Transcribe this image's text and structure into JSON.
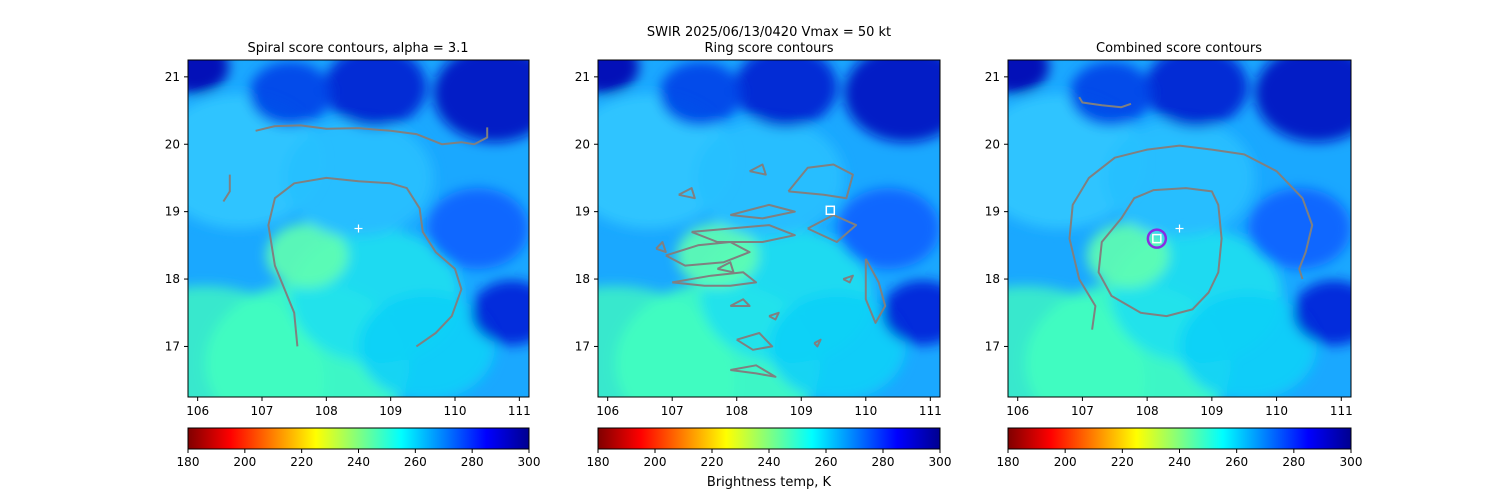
{
  "suptitle_line1": "SWIR  2025/06/13/0420    Vmax = 50 kt",
  "colorbar_label": "Brightness temp, K",
  "colormap": [
    "#800000",
    "#ff0000",
    "#ff8000",
    "#ffff00",
    "#80ff80",
    "#00ffff",
    "#0080ff",
    "#0000ff",
    "#00008f"
  ],
  "contour_color": "#808080",
  "center_cross_color": "#ffffff",
  "chart_data": [
    {
      "type": "heatmap",
      "title": "Spiral score contours, alpha =  3.1",
      "xlim": [
        105.85,
        111.15
      ],
      "ylim": [
        16.25,
        21.25
      ],
      "xticks": [
        106,
        107,
        108,
        109,
        110,
        111
      ],
      "yticks": [
        17,
        18,
        19,
        20,
        21
      ],
      "colorbar": {
        "min": 180,
        "max": 300,
        "ticks": [
          180,
          200,
          220,
          240,
          260,
          280,
          300
        ]
      },
      "center_cross": {
        "x": 108.5,
        "y": 18.75
      },
      "contours": [
        [
          [
            106.9,
            20.2
          ],
          [
            107.2,
            20.27
          ],
          [
            107.6,
            20.28
          ],
          [
            108.0,
            20.23
          ],
          [
            108.5,
            20.24
          ],
          [
            109.0,
            20.2
          ],
          [
            109.4,
            20.15
          ],
          [
            109.8,
            20.0
          ],
          [
            110.1,
            20.03
          ],
          [
            110.3,
            20.0
          ],
          [
            110.5,
            20.1
          ],
          [
            110.5,
            20.25
          ]
        ],
        [
          [
            106.4,
            19.15
          ],
          [
            106.5,
            19.3
          ],
          [
            106.5,
            19.55
          ]
        ],
        [
          [
            107.55,
            17.0
          ],
          [
            107.5,
            17.5
          ],
          [
            107.2,
            18.2
          ],
          [
            107.1,
            18.8
          ],
          [
            107.2,
            19.2
          ],
          [
            107.5,
            19.42
          ],
          [
            108.0,
            19.5
          ],
          [
            108.5,
            19.45
          ],
          [
            109.0,
            19.42
          ],
          [
            109.25,
            19.35
          ],
          [
            109.45,
            19.05
          ],
          [
            109.5,
            18.7
          ],
          [
            109.7,
            18.4
          ],
          [
            110.0,
            18.15
          ],
          [
            110.1,
            17.85
          ],
          [
            109.95,
            17.45
          ],
          [
            109.7,
            17.2
          ],
          [
            109.4,
            17.0
          ]
        ]
      ]
    },
    {
      "type": "heatmap",
      "title": "Ring score contours",
      "xlim": [
        105.85,
        111.15
      ],
      "ylim": [
        16.25,
        21.25
      ],
      "xticks": [
        106,
        107,
        108,
        109,
        110,
        111
      ],
      "yticks": [
        17,
        18,
        19,
        20,
        21
      ],
      "colorbar": {
        "min": 180,
        "max": 300,
        "ticks": [
          180,
          200,
          220,
          240,
          260,
          280,
          300
        ]
      },
      "square_marker": {
        "x": 109.45,
        "y": 19.02
      },
      "contours": [
        [
          [
            107.0,
            17.95
          ],
          [
            107.5,
            17.9
          ],
          [
            107.9,
            17.9
          ],
          [
            108.3,
            17.95
          ],
          [
            108.1,
            18.1
          ],
          [
            107.6,
            18.05
          ],
          [
            107.0,
            17.95
          ]
        ],
        [
          [
            106.9,
            18.35
          ],
          [
            107.4,
            18.5
          ],
          [
            107.9,
            18.55
          ],
          [
            108.2,
            18.4
          ],
          [
            107.8,
            18.25
          ],
          [
            107.2,
            18.2
          ],
          [
            106.9,
            18.35
          ]
        ],
        [
          [
            107.3,
            18.7
          ],
          [
            107.9,
            18.75
          ],
          [
            108.5,
            18.8
          ],
          [
            108.9,
            18.65
          ],
          [
            108.4,
            18.55
          ],
          [
            107.7,
            18.55
          ],
          [
            107.3,
            18.7
          ]
        ],
        [
          [
            107.9,
            18.95
          ],
          [
            108.5,
            19.1
          ],
          [
            108.9,
            19.0
          ],
          [
            108.4,
            18.9
          ],
          [
            107.9,
            18.95
          ]
        ],
        [
          [
            108.8,
            19.3
          ],
          [
            109.1,
            19.65
          ],
          [
            109.5,
            19.7
          ],
          [
            109.8,
            19.55
          ],
          [
            109.7,
            19.2
          ],
          [
            109.35,
            19.25
          ],
          [
            108.8,
            19.3
          ]
        ],
        [
          [
            109.1,
            18.75
          ],
          [
            109.5,
            18.95
          ],
          [
            109.85,
            18.8
          ],
          [
            109.55,
            18.55
          ],
          [
            109.1,
            18.75
          ]
        ],
        [
          [
            110.0,
            18.3
          ],
          [
            110.2,
            17.95
          ],
          [
            110.3,
            17.6
          ],
          [
            110.15,
            17.35
          ],
          [
            110.0,
            17.7
          ],
          [
            110.0,
            18.3
          ]
        ],
        [
          [
            108.0,
            17.1
          ],
          [
            108.35,
            17.2
          ],
          [
            108.55,
            17.0
          ],
          [
            108.25,
            16.95
          ],
          [
            108.0,
            17.1
          ]
        ],
        [
          [
            107.9,
            16.65
          ],
          [
            108.3,
            16.6
          ],
          [
            108.6,
            16.55
          ],
          [
            108.3,
            16.72
          ],
          [
            107.9,
            16.65
          ]
        ],
        [
          [
            108.5,
            17.45
          ],
          [
            108.65,
            17.5
          ],
          [
            108.6,
            17.4
          ],
          [
            108.5,
            17.45
          ]
        ],
        [
          [
            107.9,
            17.6
          ],
          [
            108.1,
            17.7
          ],
          [
            108.2,
            17.6
          ],
          [
            107.9,
            17.6
          ]
        ],
        [
          [
            106.75,
            18.45
          ],
          [
            106.85,
            18.55
          ],
          [
            106.9,
            18.4
          ],
          [
            106.75,
            18.45
          ]
        ],
        [
          [
            107.1,
            19.25
          ],
          [
            107.3,
            19.35
          ],
          [
            107.35,
            19.2
          ],
          [
            107.1,
            19.25
          ]
        ],
        [
          [
            109.65,
            18.0
          ],
          [
            109.8,
            18.05
          ],
          [
            109.75,
            17.95
          ],
          [
            109.65,
            18.0
          ]
        ],
        [
          [
            109.2,
            17.05
          ],
          [
            109.3,
            17.1
          ],
          [
            109.25,
            17.0
          ],
          [
            109.2,
            17.05
          ]
        ],
        [
          [
            107.7,
            18.15
          ],
          [
            107.9,
            18.25
          ],
          [
            107.95,
            18.1
          ],
          [
            107.7,
            18.15
          ]
        ],
        [
          [
            108.2,
            19.6
          ],
          [
            108.4,
            19.7
          ],
          [
            108.45,
            19.55
          ],
          [
            108.2,
            19.6
          ]
        ]
      ]
    },
    {
      "type": "heatmap",
      "title": "Combined score contours",
      "xlim": [
        105.85,
        111.15
      ],
      "ylim": [
        16.25,
        21.25
      ],
      "xticks": [
        106,
        107,
        108,
        109,
        110,
        111
      ],
      "yticks": [
        17,
        18,
        19,
        20,
        21
      ],
      "colorbar": {
        "min": 180,
        "max": 300,
        "ticks": [
          180,
          200,
          220,
          240,
          260,
          280,
          300
        ]
      },
      "center_cross": {
        "x": 108.5,
        "y": 18.75
      },
      "square_marker": {
        "x": 108.15,
        "y": 18.6
      },
      "circle_marker": {
        "x": 108.15,
        "y": 18.6
      },
      "contours": [
        [
          [
            107.15,
            17.25
          ],
          [
            107.2,
            17.6
          ],
          [
            106.95,
            18.0
          ],
          [
            106.8,
            18.6
          ],
          [
            106.85,
            19.1
          ],
          [
            107.1,
            19.5
          ],
          [
            107.5,
            19.8
          ],
          [
            108.0,
            19.92
          ],
          [
            108.5,
            19.98
          ],
          [
            109.0,
            19.92
          ],
          [
            109.5,
            19.85
          ],
          [
            110.0,
            19.6
          ],
          [
            110.4,
            19.2
          ],
          [
            110.55,
            18.8
          ],
          [
            110.45,
            18.4
          ],
          [
            110.35,
            18.15
          ],
          [
            110.4,
            18.0
          ]
        ],
        [
          [
            106.95,
            20.7
          ],
          [
            107.0,
            20.62
          ],
          [
            107.3,
            20.58
          ],
          [
            107.6,
            20.55
          ],
          [
            107.75,
            20.6
          ]
        ],
        [
          [
            107.6,
            18.9
          ],
          [
            107.8,
            19.2
          ],
          [
            108.1,
            19.32
          ],
          [
            108.6,
            19.35
          ],
          [
            109.0,
            19.3
          ],
          [
            109.1,
            19.1
          ],
          [
            109.15,
            18.6
          ],
          [
            109.1,
            18.1
          ],
          [
            108.95,
            17.8
          ],
          [
            108.7,
            17.55
          ],
          [
            108.3,
            17.45
          ],
          [
            107.9,
            17.5
          ],
          [
            107.45,
            17.75
          ],
          [
            107.25,
            18.1
          ],
          [
            107.3,
            18.55
          ],
          [
            107.6,
            18.9
          ]
        ]
      ]
    }
  ]
}
